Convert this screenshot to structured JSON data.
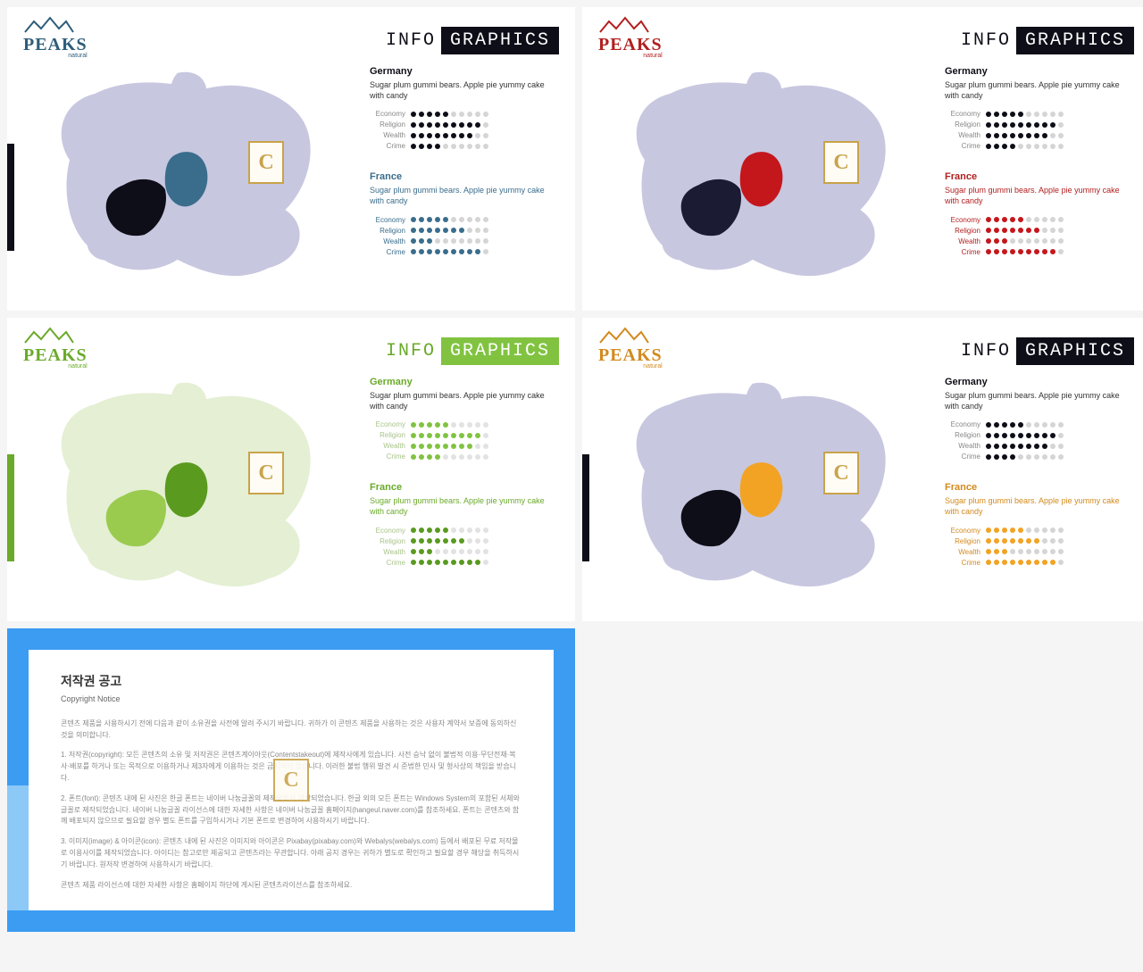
{
  "logo": {
    "brand": "PEAKS",
    "sub": "natural"
  },
  "title": {
    "info": "INFO",
    "graphics": "GRAPHICS"
  },
  "watermark": "C",
  "countries": {
    "a": {
      "name": "Germany",
      "desc": "Sugar plum gummi bears. Apple pie yummy cake with candy",
      "ratings": [
        {
          "label": "Economy",
          "value": 5,
          "max": 10
        },
        {
          "label": "Religion",
          "value": 9,
          "max": 10
        },
        {
          "label": "Wealth",
          "value": 8,
          "max": 10
        },
        {
          "label": "Crime",
          "value": 4,
          "max": 10
        }
      ]
    },
    "b": {
      "name": "France",
      "desc": "Sugar plum gummi bears. Apple pie yummy cake with candy",
      "ratings": [
        {
          "label": "Economy",
          "value": 5,
          "max": 10
        },
        {
          "label": "Religion",
          "value": 7,
          "max": 10
        },
        {
          "label": "Wealth",
          "value": 3,
          "max": 10
        },
        {
          "label": "Crime",
          "value": 9,
          "max": 10
        }
      ]
    }
  },
  "variants": [
    {
      "logo_color": "#2e5d7b",
      "sidebar_color": "#0e0e18",
      "title_bg": "#0e0e18",
      "title_fg": "#0e0e18",
      "map_base": "#c7c7e0",
      "country_a_fill": "#3a6d8c",
      "country_b_fill": "#0e0e18",
      "block_a": {
        "heading_color": "#0e0e18",
        "dot_on": "#0e0e18",
        "dot_off": "#d5d5d5",
        "label_color": "#888"
      },
      "block_b": {
        "heading_color": "#3a6d8c",
        "dot_on": "#3a6d8c",
        "dot_off": "#d5d5d5",
        "label_color": "#3a6d8c"
      },
      "side": "left"
    },
    {
      "logo_color": "#b22020",
      "sidebar_color": "#1b1b34",
      "title_bg": "#0e0e18",
      "title_fg": "#0e0e18",
      "map_base": "#c7c7e0",
      "country_a_fill": "#c4171c",
      "country_b_fill": "#1b1b34",
      "block_a": {
        "heading_color": "#0e0e18",
        "dot_on": "#0e0e18",
        "dot_off": "#d5d5d5",
        "label_color": "#888"
      },
      "block_b": {
        "heading_color": "#b22020",
        "dot_on": "#c4171c",
        "dot_off": "#d5d5d5",
        "label_color": "#b22020"
      },
      "side": "right"
    },
    {
      "logo_color": "#6aaa2a",
      "sidebar_color": "#6aaa2a",
      "title_bg": "#81c341",
      "title_fg": "#6aaa2a",
      "map_base": "#e4efd4",
      "country_a_fill": "#5a9a1f",
      "country_b_fill": "#9acb4f",
      "block_a": {
        "heading_color": "#6aaa2a",
        "dot_on": "#81c341",
        "dot_off": "#e2e2e2",
        "label_color": "#a9c48a"
      },
      "block_b": {
        "heading_color": "#6aaa2a",
        "dot_on": "#5a9a1f",
        "dot_off": "#e2e2e2",
        "label_color": "#a9c48a"
      },
      "side": "left"
    },
    {
      "logo_color": "#d38a1e",
      "sidebar_color": "#0e0e18",
      "title_bg": "#0e0e18",
      "title_fg": "#0e0e18",
      "map_base": "#c7c7e0",
      "country_a_fill": "#f2a324",
      "country_b_fill": "#0e0e18",
      "block_a": {
        "heading_color": "#0e0e18",
        "dot_on": "#0e0e18",
        "dot_off": "#d5d5d5",
        "label_color": "#888"
      },
      "block_b": {
        "heading_color": "#d38a1e",
        "dot_on": "#f2a324",
        "dot_off": "#d5d5d5",
        "label_color": "#d38a1e"
      },
      "side": "left"
    }
  ],
  "copyright": {
    "title": "저작권 공고",
    "sub": "Copyright Notice",
    "p1": "콘텐츠 제품을 사용하시기 전에 다음과 같이 소유권을 사전에 알려 주시기 바랍니다. 귀하가 이 콘텐츠 제품을 사용하는 것은 사용자 계약서 보증에 동의하신 것을 의미합니다.",
    "p2": "1. 저작권(copyright): 모든 콘텐츠의 소유 및 저작권은 콘텐츠계이아웃(Contentstakeout)에 제작사에게 있습니다. 사전 승낙 없이 불법적 이용·무단전재·복사·배포를 하거나 또는 목적으로 이용하거나 제3자에게 이용하는 것은 금지되어 있습니다. 이러한 불법 행위 발견 시 준법한 민사 및 형사상의 책임을 받습니다.",
    "p3": "2. 폰트(font): 콘텐츠 내에 된 사진은 한글 폰트는 네이버 나눔글꼴의 제작물로서 제작되었습니다. 한글 외의 모든 폰트는 Windows System의 포함된 서체와 글꼴로 제작되었습니다. 네이버 나눔글꼴 라이선스에 대한 자세한 사항은 네이버 나눔글꼴 홈페이지(hangeul.naver.com)를 참조하세요. 폰트는 콘텐츠와 함께 배포되지 않으므로 필요할 경우 별도 폰트를 구입하시거나 기본 폰트로 변경하여 사용하시기 바랍니다.",
    "p4": "3. 이미지(image) & 아이콘(icon): 콘텐츠 내에 된 사진은 이미지와 아이콘은 Pixabay(pixabay.com)와 Webalys(webalys.com) 등에서 배포된 무료 저작물로 이용사이를 제작되었습니다. 아이디는 참고로만 제공되고 콘텐츠라는 무관합니다. 아래 공지 경우는 귀하가 별도로 확인하고 필요할 경우 해당을 취득하시기 바랍니다. 원저작 변경하여 사용하시기 바랍니다.",
    "p5": "콘텐츠 제품 라이선스에 대한 자세한 사항은 홈페이지 하단에 게시된 콘텐츠라이선스를 참조하세요."
  }
}
